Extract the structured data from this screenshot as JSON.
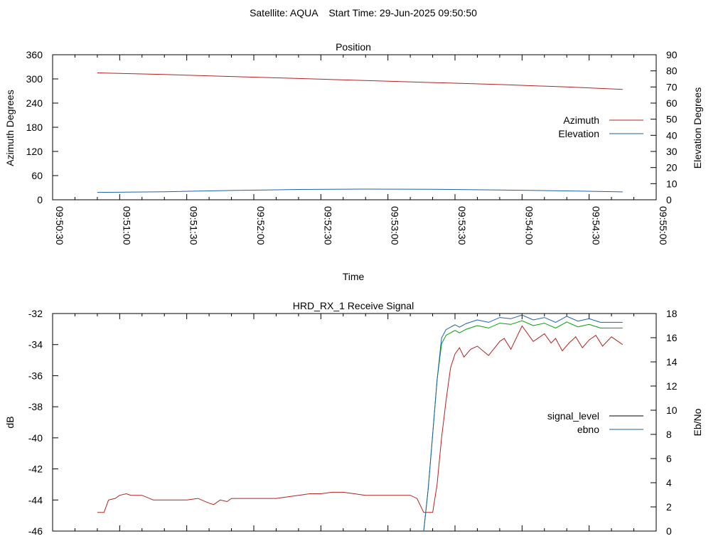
{
  "page_title": "Satellite: AQUA    Start Time: 29-Jun-2025 09:50:50",
  "colors": {
    "azimuth": "#b22222",
    "elevation": "#1f5fa8",
    "signal_level": "#b22222",
    "ebno": "#00a000",
    "signal_level_legend": "#000000",
    "ebno_legend": "#1f5fa8",
    "ebno_overlay": "#1f5fa8"
  },
  "chart_data": [
    {
      "type": "line",
      "title": "Position",
      "xlabel": "Time",
      "ylabel": "Azimuth Degrees",
      "y2label": "Elevation Degrees",
      "x_ticks": [
        "09:50:30",
        "09:51:00",
        "09:51:30",
        "09:52:00",
        "09:52:30",
        "09:53:00",
        "09:53:30",
        "09:54:00",
        "09:54:30",
        "09:55:00"
      ],
      "xlim": [
        "09:50:30",
        "09:55:00"
      ],
      "ylim": [
        0,
        360
      ],
      "y_ticks": [
        "0",
        "60",
        "120",
        "180",
        "240",
        "300",
        "360"
      ],
      "y2lim": [
        0,
        90
      ],
      "y2_ticks": [
        "0",
        "10",
        "20",
        "30",
        "40",
        "50",
        "60",
        "70",
        "80",
        "90"
      ],
      "legend_position": "right",
      "legend": [
        "Azimuth",
        "Elevation"
      ],
      "series": [
        {
          "name": "Azimuth",
          "axis": "left",
          "x": [
            "09:50:50",
            "09:51:20",
            "09:51:50",
            "09:52:20",
            "09:52:50",
            "09:53:20",
            "09:53:50",
            "09:54:20",
            "09:54:45"
          ],
          "values": [
            315,
            311,
            306,
            301,
            296,
            291,
            286,
            280,
            274
          ]
        },
        {
          "name": "Elevation",
          "axis": "right",
          "x": [
            "09:50:50",
            "09:51:20",
            "09:51:50",
            "09:52:20",
            "09:52:50",
            "09:53:20",
            "09:53:50",
            "09:54:20",
            "09:54:45"
          ],
          "values": [
            4.6,
            5.0,
            5.8,
            6.4,
            6.6,
            6.5,
            6.1,
            5.5,
            4.9
          ]
        }
      ]
    },
    {
      "type": "line",
      "title": "HRD_RX_1 Receive Signal",
      "ylabel": "dB",
      "y2label": "Eb/No",
      "ylim": [
        -46,
        -32
      ],
      "y_ticks": [
        "-32",
        "-34",
        "-36",
        "-38",
        "-40",
        "-42",
        "-44",
        "-46"
      ],
      "y2lim": [
        0,
        18
      ],
      "y2_ticks": [
        "0",
        "2",
        "4",
        "6",
        "8",
        "10",
        "12",
        "14",
        "16",
        "18"
      ],
      "legend_position": "right",
      "legend": [
        "signal_level",
        "ebno"
      ],
      "series": [
        {
          "name": "signal_level",
          "axis": "left",
          "x": [
            "09:50:50",
            "09:50:53",
            "09:50:55",
            "09:50:58",
            "09:51:00",
            "09:51:03",
            "09:51:05",
            "09:51:10",
            "09:51:15",
            "09:51:20",
            "09:51:25",
            "09:51:30",
            "09:51:35",
            "09:51:40",
            "09:51:42",
            "09:51:45",
            "09:51:48",
            "09:51:50",
            "09:52:00",
            "09:52:05",
            "09:52:10",
            "09:52:15",
            "09:52:20",
            "09:52:25",
            "09:52:30",
            "09:52:35",
            "09:52:40",
            "09:52:45",
            "09:52:50",
            "09:52:55",
            "09:53:00",
            "09:53:05",
            "09:53:10",
            "09:53:13",
            "09:53:16",
            "09:53:18",
            "09:53:20",
            "09:53:22",
            "09:53:24",
            "09:53:26",
            "09:53:28",
            "09:53:30",
            "09:53:32",
            "09:53:34",
            "09:53:37",
            "09:53:40",
            "09:53:45",
            "09:53:50",
            "09:53:52",
            "09:53:55",
            "09:54:00",
            "09:54:05",
            "09:54:10",
            "09:54:13",
            "09:54:15",
            "09:54:18",
            "09:54:21",
            "09:54:24",
            "09:54:27",
            "09:54:30",
            "09:54:33",
            "09:54:36",
            "09:54:40",
            "09:54:45"
          ],
          "values": [
            -44.8,
            -44.8,
            -44.0,
            -43.9,
            -43.7,
            -43.6,
            -43.7,
            -43.7,
            -44.0,
            -44.0,
            -44.0,
            -44.0,
            -43.9,
            -44.2,
            -44.3,
            -44.0,
            -44.1,
            -43.9,
            -43.9,
            -43.9,
            -43.9,
            -43.8,
            -43.7,
            -43.6,
            -43.6,
            -43.5,
            -43.5,
            -43.6,
            -43.7,
            -43.7,
            -43.7,
            -43.7,
            -43.7,
            -43.9,
            -44.8,
            -44.8,
            -44.8,
            -43.0,
            -40.0,
            -37.6,
            -35.5,
            -34.6,
            -34.2,
            -34.8,
            -34.3,
            -34.1,
            -34.7,
            -33.8,
            -33.6,
            -34.3,
            -32.8,
            -33.8,
            -33.3,
            -33.9,
            -33.6,
            -34.4,
            -33.9,
            -33.5,
            -34.2,
            -33.7,
            -33.4,
            -34.1,
            -33.5,
            -34.0
          ]
        },
        {
          "name": "ebno",
          "axis": "right",
          "x": [
            "09:53:16",
            "09:53:18",
            "09:53:20",
            "09:53:22",
            "09:53:24",
            "09:53:26",
            "09:53:28",
            "09:53:30",
            "09:53:32",
            "09:53:35",
            "09:53:40",
            "09:53:45",
            "09:53:50",
            "09:53:55",
            "09:54:00",
            "09:54:05",
            "09:54:10",
            "09:54:15",
            "09:54:20",
            "09:54:25",
            "09:54:30",
            "09:54:35",
            "09:54:40",
            "09:54:45"
          ],
          "values": [
            0.0,
            3.5,
            8.0,
            12.5,
            15.5,
            16.2,
            16.4,
            16.6,
            16.4,
            16.7,
            17.0,
            16.8,
            17.2,
            17.1,
            17.4,
            17.0,
            17.2,
            16.8,
            17.3,
            16.9,
            17.1,
            16.8,
            16.8,
            16.8
          ]
        }
      ]
    }
  ]
}
